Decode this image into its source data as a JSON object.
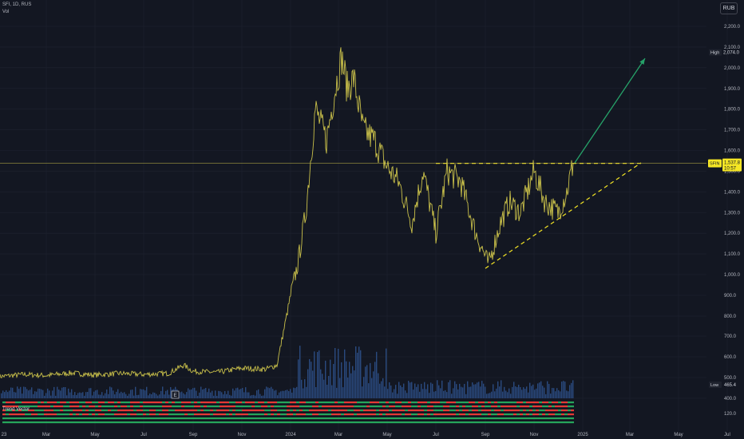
{
  "header": {
    "symbol_line": "SFI, 1D, RUS",
    "volume_label": "Vol",
    "currency": "RUB"
  },
  "indicator_label": "Trend Vector",
  "axis_badges": {
    "high": {
      "label": "High",
      "value": "2,074.0"
    },
    "low": {
      "label": "Low",
      "value": "465.4"
    },
    "last": {
      "symbol": "SFIN",
      "value": "1,537.8",
      "countdown": "10:57"
    }
  },
  "event_marker": "E",
  "colors": {
    "background": "#131722",
    "price_line": "#c9c04a",
    "volume": "#2a4a7f",
    "projection_arrow": "#26a269",
    "triangle_lines": "#f5e625",
    "bull": "#26a65b",
    "bear": "#e53935"
  },
  "chart_data": {
    "type": "line",
    "x_tick_labels": [
      "23",
      "Mar",
      "May",
      "Jul",
      "Sep",
      "Nov",
      "2024",
      "Mar",
      "May",
      "Jul",
      "Sep",
      "Nov",
      "2025",
      "Mar",
      "May",
      "Jul",
      "Sep"
    ],
    "y_tick_labels": [
      "2,200.0",
      "2,100.0",
      "2,000.0",
      "1,900.0",
      "1,800.0",
      "1,700.0",
      "1,600.0",
      "1,500.0",
      "1,400.0",
      "1,300.0",
      "1,200.0",
      "1,100.0",
      "1,000.0",
      "900.0",
      "800.0",
      "700.0",
      "600.0",
      "500.0",
      "400.0"
    ],
    "indicator_tick": "120.0",
    "ylim": [
      400,
      2200
    ],
    "price_series": {
      "dates": [
        "2023-01-01",
        "2023-02-01",
        "2023-03-01",
        "2023-04-01",
        "2023-05-01",
        "2023-06-01",
        "2023-07-01",
        "2023-08-01",
        "2023-08-20",
        "2023-09-01",
        "2023-10-01",
        "2023-11-01",
        "2023-12-01",
        "2023-12-15",
        "2024-01-01",
        "2024-01-10",
        "2024-01-20",
        "2024-02-01",
        "2024-02-15",
        "2024-02-25",
        "2024-03-05",
        "2024-03-12",
        "2024-03-20",
        "2024-04-01",
        "2024-04-15",
        "2024-05-01",
        "2024-05-15",
        "2024-06-01",
        "2024-06-15",
        "2024-07-01",
        "2024-07-15",
        "2024-08-01",
        "2024-08-20",
        "2024-09-05",
        "2024-09-20",
        "2024-10-01",
        "2024-10-15",
        "2024-11-01",
        "2024-11-15",
        "2024-12-01",
        "2024-12-12",
        "2024-12-20"
      ],
      "close": [
        505,
        515,
        510,
        522,
        512,
        520,
        515,
        520,
        560,
        530,
        525,
        545,
        540,
        560,
        900,
        1050,
        1300,
        1800,
        1650,
        1880,
        2050,
        1900,
        1950,
        1700,
        1650,
        1520,
        1450,
        1250,
        1500,
        1200,
        1500,
        1450,
        1200,
        1050,
        1250,
        1350,
        1300,
        1500,
        1350,
        1300,
        1400,
        1537.8
      ]
    },
    "volume_note": "",
    "annotations": {
      "resistance_level": 1537.8,
      "support_start": {
        "date": "2024-09-01",
        "value": 1030
      },
      "support_end": {
        "date": "2025-03-15",
        "value": 1540
      },
      "resistance_start": "2024-07-01",
      "resistance_end": "2025-03-15",
      "arrow_start": {
        "date": "2024-12-22",
        "value": 1540
      },
      "arrow_end": {
        "date": "2025-03-20",
        "value": 2045
      }
    }
  }
}
